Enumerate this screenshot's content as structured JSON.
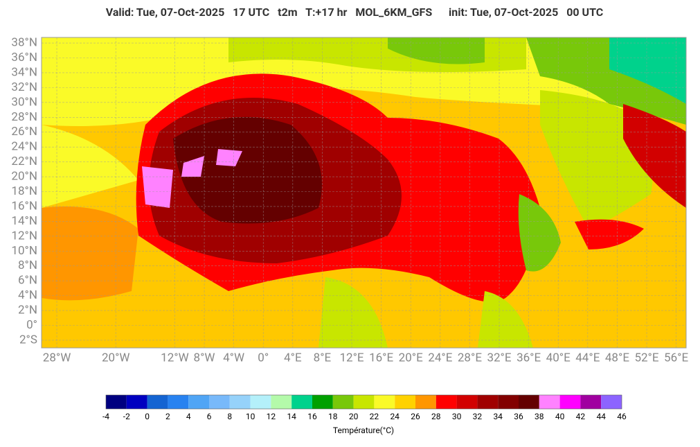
{
  "title": "Valid: Tue, 07-Oct-2025   17 UTC   t2m   T:+17 hr   MOL_6KM_GFS      init: Tue, 07-Oct-2025   00 UTC",
  "map": {
    "xlim": [
      -30.07,
      57.35
    ],
    "ylim": [
      -3.03,
      38.75
    ],
    "xticks": [
      {
        "value": -28,
        "label": "28°W"
      },
      {
        "value": -20,
        "label": "20°W"
      },
      {
        "value": -12,
        "label": "12°W"
      },
      {
        "value": -8,
        "label": "8°W"
      },
      {
        "value": -4,
        "label": "4°W"
      },
      {
        "value": 0,
        "label": "0°"
      },
      {
        "value": 4,
        "label": "4°E"
      },
      {
        "value": 8,
        "label": "8°E"
      },
      {
        "value": 12,
        "label": "12°E"
      },
      {
        "value": 16,
        "label": "16°E"
      },
      {
        "value": 20,
        "label": "20°E"
      },
      {
        "value": 24,
        "label": "24°E"
      },
      {
        "value": 28,
        "label": "28°E"
      },
      {
        "value": 32,
        "label": "32°E"
      },
      {
        "value": 36,
        "label": "36°E"
      },
      {
        "value": 40,
        "label": "40°E"
      },
      {
        "value": 44,
        "label": "44°E"
      },
      {
        "value": 48,
        "label": "48°E"
      },
      {
        "value": 52,
        "label": "52°E"
      },
      {
        "value": 56,
        "label": "56°E"
      }
    ],
    "yticks": [
      {
        "value": 38,
        "label": "38°N"
      },
      {
        "value": 36,
        "label": "36°N"
      },
      {
        "value": 34,
        "label": "34°N"
      },
      {
        "value": 32,
        "label": "32°N"
      },
      {
        "value": 30,
        "label": "30°N"
      },
      {
        "value": 28,
        "label": "28°N"
      },
      {
        "value": 26,
        "label": "26°N"
      },
      {
        "value": 24,
        "label": "24°N"
      },
      {
        "value": 22,
        "label": "22°N"
      },
      {
        "value": 20,
        "label": "20°N"
      },
      {
        "value": 18,
        "label": "18°N"
      },
      {
        "value": 16,
        "label": "16°N"
      },
      {
        "value": 14,
        "label": "14°N"
      },
      {
        "value": 12,
        "label": "12°N"
      },
      {
        "value": 10,
        "label": "10°N"
      },
      {
        "value": 8,
        "label": "8°N"
      },
      {
        "value": 6,
        "label": "6°N"
      },
      {
        "value": 4,
        "label": "4°N"
      },
      {
        "value": 2,
        "label": "2°N"
      },
      {
        "value": 0,
        "label": "0°"
      },
      {
        "value": -2,
        "label": "2°S"
      }
    ]
  },
  "colorbar": {
    "ticks": [
      -4,
      -2,
      0,
      2,
      4,
      6,
      8,
      10,
      12,
      14,
      16,
      18,
      20,
      22,
      24,
      26,
      28,
      30,
      32,
      34,
      36,
      38,
      40,
      42,
      44,
      46
    ],
    "colors": [
      "#000080",
      "#0000c0",
      "#1464d2",
      "#2882f0",
      "#50a5f5",
      "#78b9fa",
      "#96d2fa",
      "#b4f0fa",
      "#b4faaa",
      "#00d28c",
      "#00a000",
      "#78c80a",
      "#c8e600",
      "#fafa28",
      "#ffd200",
      "#ff9600",
      "#ff0000",
      "#d20000",
      "#a00000",
      "#820000",
      "#640000",
      "#ff82ff",
      "#ff00ff",
      "#a000a0",
      "#8c64ff"
    ],
    "label": "Température(°C)"
  }
}
